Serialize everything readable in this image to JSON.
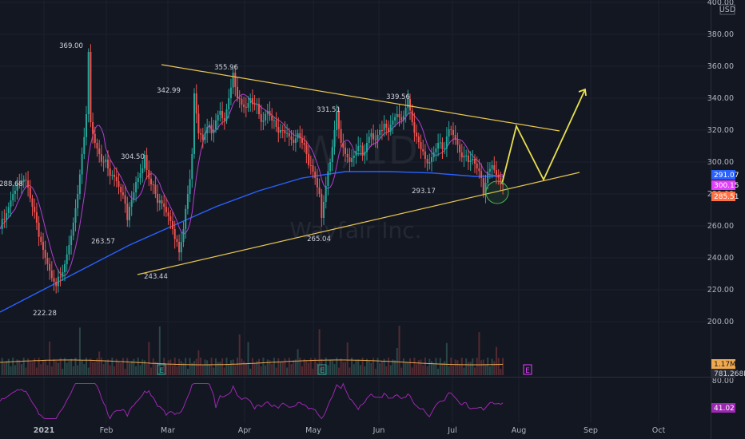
{
  "chart_data": {
    "type": "candlestick",
    "watermark": {
      "ticker": "W, 1D",
      "name": "Wayfair Inc."
    },
    "currency": "USD",
    "price_axis": {
      "ylim": [
        186,
        400
      ],
      "ticks": [
        "400.00",
        "380.00",
        "360.00",
        "340.00",
        "320.00",
        "300.00",
        "280.00",
        "260.00",
        "240.00",
        "220.00",
        "200.00"
      ]
    },
    "time_axis": {
      "labels": [
        "2021",
        "Feb",
        "Mar",
        "Apr",
        "May",
        "Jun",
        "Jul",
        "Aug",
        "Sep",
        "Oct"
      ]
    },
    "price_path": [
      [
        0,
        258
      ],
      [
        3,
        268
      ],
      [
        6,
        280
      ],
      [
        9,
        286
      ],
      [
        11,
        289
      ],
      [
        13,
        284
      ],
      [
        15,
        272
      ],
      [
        17,
        262
      ],
      [
        19,
        250
      ],
      [
        21,
        240
      ],
      [
        23,
        232
      ],
      [
        25,
        225
      ],
      [
        26,
        222.28
      ],
      [
        28,
        228
      ],
      [
        30,
        236
      ],
      [
        32,
        248
      ],
      [
        34,
        262
      ],
      [
        36,
        280
      ],
      [
        38,
        305
      ],
      [
        40,
        330
      ],
      [
        41,
        369
      ],
      [
        42,
        325
      ],
      [
        44,
        312
      ],
      [
        46,
        305
      ],
      [
        48,
        300
      ],
      [
        50,
        296
      ],
      [
        52,
        292
      ],
      [
        54,
        288
      ],
      [
        56,
        281
      ],
      [
        58,
        274
      ],
      [
        59,
        263.57
      ],
      [
        60,
        272
      ],
      [
        62,
        281
      ],
      [
        64,
        290
      ],
      [
        66,
        296
      ],
      [
        67,
        304.5
      ],
      [
        68,
        295
      ],
      [
        70,
        286
      ],
      [
        72,
        280
      ],
      [
        74,
        276
      ],
      [
        76,
        272
      ],
      [
        78,
        266
      ],
      [
        80,
        258
      ],
      [
        82,
        250
      ],
      [
        83,
        243.44
      ],
      [
        85,
        258
      ],
      [
        87,
        280
      ],
      [
        89,
        305
      ],
      [
        90,
        342.99
      ],
      [
        92,
        318
      ],
      [
        94,
        314
      ],
      [
        96,
        322
      ],
      [
        98,
        318
      ],
      [
        100,
        326
      ],
      [
        102,
        332
      ],
      [
        104,
        326
      ],
      [
        106,
        340
      ],
      [
        108,
        355.96
      ],
      [
        110,
        340
      ],
      [
        112,
        336
      ],
      [
        114,
        334
      ],
      [
        116,
        340
      ],
      [
        118,
        336
      ],
      [
        120,
        330
      ],
      [
        122,
        326
      ],
      [
        124,
        332
      ],
      [
        126,
        326
      ],
      [
        128,
        322
      ],
      [
        130,
        320
      ],
      [
        132,
        318
      ],
      [
        134,
        316
      ],
      [
        136,
        312
      ],
      [
        138,
        318
      ],
      [
        140,
        312
      ],
      [
        142,
        305
      ],
      [
        144,
        298
      ],
      [
        146,
        290
      ],
      [
        148,
        280
      ],
      [
        149,
        265.04
      ],
      [
        151,
        285
      ],
      [
        153,
        300
      ],
      [
        155,
        320
      ],
      [
        156,
        331.51
      ],
      [
        158,
        312
      ],
      [
        160,
        305
      ],
      [
        162,
        300
      ],
      [
        164,
        304
      ],
      [
        166,
        310
      ],
      [
        168,
        304
      ],
      [
        170,
        312
      ],
      [
        172,
        318
      ],
      [
        174,
        314
      ],
      [
        176,
        320
      ],
      [
        178,
        324
      ],
      [
        180,
        319
      ],
      [
        182,
        326
      ],
      [
        184,
        330
      ],
      [
        186,
        326
      ],
      [
        188,
        334
      ],
      [
        189,
        339.56
      ],
      [
        191,
        325
      ],
      [
        193,
        316
      ],
      [
        195,
        308
      ],
      [
        197,
        302
      ],
      [
        199,
        300
      ],
      [
        201,
        306
      ],
      [
        203,
        312
      ],
      [
        205,
        308
      ],
      [
        207,
        316
      ],
      [
        209,
        320
      ],
      [
        211,
        314
      ],
      [
        213,
        306
      ],
      [
        215,
        304
      ],
      [
        217,
        300
      ],
      [
        219,
        302
      ],
      [
        221,
        296
      ],
      [
        223,
        290
      ],
      [
        224,
        280
      ],
      [
        226,
        294
      ],
      [
        228,
        298
      ],
      [
        230,
        292
      ],
      [
        232,
        286
      ],
      [
        233,
        285.51
      ]
    ],
    "moving_average_200": [
      [
        0,
        206
      ],
      [
        20,
        220
      ],
      [
        40,
        234
      ],
      [
        60,
        248
      ],
      [
        80,
        260
      ],
      [
        100,
        272
      ],
      [
        120,
        282
      ],
      [
        140,
        290
      ],
      [
        160,
        294
      ],
      [
        180,
        294
      ],
      [
        200,
        293.17
      ],
      [
        220,
        291
      ],
      [
        233,
        291.07
      ]
    ],
    "volume": {
      "last_label": "1.17M",
      "average_label": "781.268K"
    },
    "oscillator": {
      "levels": [
        "80.00"
      ],
      "last_label": "41.02"
    },
    "price_labels": {
      "last_blue": "291.07",
      "pink": "300.15",
      "last_orange": "285.51"
    },
    "annotations": [
      "369.00",
      "355.96",
      "342.99",
      "331.51",
      "339.56",
      "304.50",
      "288.68",
      "263.57",
      "243.44",
      "265.04",
      "293.17",
      "222.28"
    ],
    "earnings_markers": [
      "E",
      "E",
      "E"
    ],
    "trendlines": {
      "upper": [
        [
          202,
          81
        ],
        [
          700,
          164
        ]
      ],
      "lower": [
        [
          172,
          344
        ],
        [
          725,
          216
        ]
      ],
      "projection": [
        [
          628,
          230
        ],
        [
          646,
          158
        ],
        [
          680,
          225
        ],
        [
          732,
          112
        ]
      ]
    }
  }
}
